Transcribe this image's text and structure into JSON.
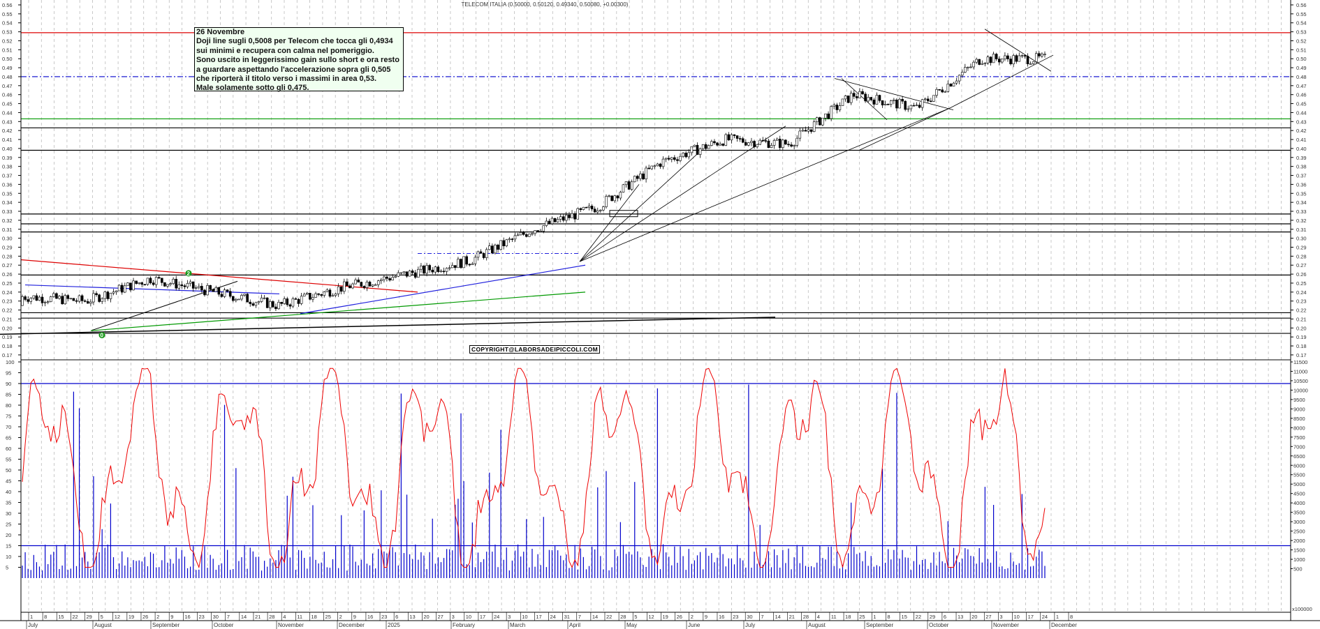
{
  "header": {
    "title": "TELECOM ITALIA (0.50000, 0.50120, 0.49340, 0.50080, +0.00300)"
  },
  "annotation": {
    "lines": [
      "26 Novembre",
      "Doji line sugli 0,5008 per Telecom che tocca gli 0,4934",
      "sui minimi e recupera  con calma nel pomeriggio.",
      "Sono uscito in leggerissimo gain sullo short e ora resto",
      "a guardare aspettando l'accelerazione sopra gli 0,505",
      "che riporterà il titolo verso i massimi in area 0,53.",
      "Male solamente sotto gli 0,475."
    ]
  },
  "copyright": "COPYRIGHT@LABORSADEIPICCOLI.COM",
  "markers": [
    {
      "label": "2",
      "color": "#1a9a1a"
    },
    {
      "label": "0",
      "color": "#1a9a1a"
    }
  ],
  "axis": {
    "price_ticks": [
      "0.56",
      "0.55",
      "0.54",
      "0.53",
      "0.52",
      "0.51",
      "0.50",
      "0.49",
      "0.48",
      "0.47",
      "0.46",
      "0.45",
      "0.44",
      "0.43",
      "0.42",
      "0.41",
      "0.40",
      "0.39",
      "0.38",
      "0.37",
      "0.36",
      "0.35",
      "0.34",
      "0.33",
      "0.32",
      "0.31",
      "0.30",
      "0.29",
      "0.28",
      "0.27",
      "0.26",
      "0.25",
      "0.24",
      "0.23",
      "0.22",
      "0.21",
      "0.20",
      "0.19",
      "0.18",
      "0.17"
    ],
    "osc_ticks_left": [
      "100",
      "95",
      "90",
      "85",
      "80",
      "75",
      "70",
      "65",
      "60",
      "55",
      "50",
      "45",
      "40",
      "35",
      "30",
      "25",
      "20",
      "15",
      "10",
      "5"
    ],
    "volume_ticks_right": [
      "11500",
      "11000",
      "10500",
      "10000",
      "9500",
      "9000",
      "8500",
      "8000",
      "7500",
      "7000",
      "6500",
      "6000",
      "5500",
      "5000",
      "4500",
      "4000",
      "3500",
      "3000",
      "2500",
      "2000",
      "1500",
      "1000",
      "500"
    ],
    "volume_multiplier": "x100000",
    "day_ticks": [
      "1",
      "8",
      "15",
      "22",
      "29",
      "5",
      "12",
      "19",
      "26",
      "2",
      "9",
      "16",
      "23",
      "30",
      "7",
      "14",
      "21",
      "28",
      "4",
      "11",
      "18",
      "25",
      "2",
      "9",
      "16",
      "23",
      "6",
      "13",
      "20",
      "27",
      "3",
      "10",
      "17",
      "24",
      "3",
      "10",
      "17",
      "24",
      "31",
      "7",
      "14",
      "22",
      "28",
      "5",
      "12",
      "19",
      "26",
      "2",
      "9",
      "16",
      "23",
      "30",
      "7",
      "14",
      "21",
      "28",
      "4",
      "11",
      "18",
      "25",
      "1",
      "8",
      "15",
      "22",
      "29",
      "6",
      "13",
      "20",
      "27",
      "3",
      "10",
      "17",
      "24",
      "1",
      "8"
    ],
    "months": [
      "July",
      "August",
      "September",
      "October",
      "November",
      "December",
      "2025",
      "February",
      "March",
      "April",
      "May",
      "June",
      "July",
      "August",
      "September",
      "October",
      "November",
      "December"
    ]
  },
  "colors": {
    "resistance": "#dd0000",
    "dashdot": "#0000cc",
    "support_green": "#009900",
    "oscillator": "#ee0000",
    "volume": "#0000cc",
    "grid": "#bbbbbb",
    "annotation_bg": "#f0fff0"
  },
  "chart_data": [
    {
      "type": "candlestick",
      "title": "TELECOM ITALIA (0.50000, 0.50120, 0.49340, 0.50080, +0.00300)",
      "last_bar": {
        "open": 0.5,
        "high": 0.5012,
        "low": 0.4934,
        "close": 0.5008,
        "change": 0.003
      },
      "ylim": [
        0.165,
        0.565
      ],
      "x_range": [
        "July 2024",
        "December 2025"
      ],
      "horizontal_levels": [
        {
          "value": 0.529,
          "color": "red",
          "style": "solid"
        },
        {
          "value": 0.48,
          "color": "blue",
          "style": "dashdot"
        },
        {
          "value": 0.433,
          "color": "green",
          "style": "solid"
        },
        {
          "value": 0.423,
          "color": "black",
          "style": "solid"
        },
        {
          "value": 0.398,
          "color": "black",
          "style": "solid"
        },
        {
          "value": 0.327,
          "color": "black",
          "style": "solid"
        },
        {
          "value": 0.316,
          "color": "black",
          "style": "solid"
        },
        {
          "value": 0.307,
          "color": "black",
          "style": "solid"
        },
        {
          "value": 0.259,
          "color": "black",
          "style": "solid"
        },
        {
          "value": 0.217,
          "color": "black",
          "style": "solid"
        },
        {
          "value": 0.211,
          "color": "black",
          "style": "solid"
        },
        {
          "value": 0.194,
          "color": "black",
          "style": "solid"
        }
      ],
      "approx_monthly_closes": [
        {
          "month": "Jul 2024",
          "close": 0.235
        },
        {
          "month": "Aug 2024",
          "close": 0.23
        },
        {
          "month": "Sep 2024",
          "close": 0.255
        },
        {
          "month": "Oct 2024",
          "close": 0.24
        },
        {
          "month": "Nov 2024",
          "close": 0.225
        },
        {
          "month": "Dec 2024",
          "close": 0.245
        },
        {
          "month": "Jan 2025",
          "close": 0.26
        },
        {
          "month": "Feb 2025",
          "close": 0.275
        },
        {
          "month": "Mar 2025",
          "close": 0.31
        },
        {
          "month": "Apr 2025",
          "close": 0.335
        },
        {
          "month": "May 2025",
          "close": 0.385
        },
        {
          "month": "Jun 2025",
          "close": 0.41
        },
        {
          "month": "Jul 2025",
          "close": 0.405
        },
        {
          "month": "Aug 2025",
          "close": 0.46
        },
        {
          "month": "Sep 2025",
          "close": 0.445
        },
        {
          "month": "Oct 2025",
          "close": 0.5
        },
        {
          "month": "Nov 2025",
          "close": 0.5
        }
      ],
      "annotations": [
        "26 Novembre note box",
        "COPYRIGHT@LABORSADEIPICCOLI.COM"
      ]
    },
    {
      "type": "line",
      "name": "Oscillator (0-100)",
      "ylim": [
        0,
        100
      ],
      "levels": [
        90,
        15
      ],
      "series_color": "red"
    },
    {
      "type": "bar",
      "name": "Volume",
      "unit": "x100000",
      "ylim": [
        0,
        11500
      ],
      "series_color": "blue"
    }
  ]
}
